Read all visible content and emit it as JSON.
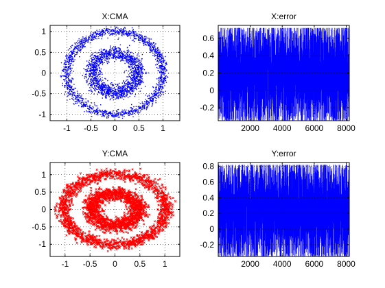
{
  "chart_data": [
    {
      "type": "scatter",
      "title": "X:CMA",
      "xlabel": "",
      "ylabel": "",
      "xlim": [
        -1.35,
        1.35
      ],
      "ylim": [
        -1.15,
        1.15
      ],
      "xticks": [
        -1,
        -0.5,
        0,
        0.5,
        1
      ],
      "xtick_labels": [
        "-1",
        "-0.5",
        "0",
        "0.5",
        "1"
      ],
      "yticks": [
        1,
        0.5,
        0,
        -0.5,
        -1
      ],
      "ytick_labels": [
        "1",
        "0.5",
        "0",
        "-0.5",
        "-1"
      ],
      "grid": true,
      "color": "#0000ff",
      "marker": "dot",
      "rings": [
        {
          "radius_min": 0.25,
          "radius_max": 0.7
        },
        {
          "radius_min": 0.85,
          "radius_max": 1.15
        }
      ]
    },
    {
      "type": "line",
      "title": "X:error",
      "xlabel": "",
      "ylabel": "",
      "xlim": [
        1,
        8192
      ],
      "ylim": [
        -0.35,
        0.75
      ],
      "xticks": [
        2000,
        4000,
        6000,
        8000
      ],
      "xtick_labels": [
        "2000",
        "4000",
        "6000",
        "8000"
      ],
      "yticks": [
        0.6,
        0.4,
        0.2,
        0,
        -0.2
      ],
      "ytick_labels": [
        "0.6",
        "0.4",
        "0.2",
        "0",
        "-0.2"
      ],
      "grid": true,
      "color": "#0000ff",
      "n_points": 8192,
      "value_range": [
        -0.35,
        0.72
      ]
    },
    {
      "type": "scatter",
      "title": "Y:CMA",
      "xlabel": "",
      "ylabel": "",
      "xlim": [
        -1.3,
        1.3
      ],
      "ylim": [
        -1.35,
        1.35
      ],
      "xticks": [
        -1,
        -0.5,
        0,
        0.5,
        1
      ],
      "xtick_labels": [
        "-1",
        "-0.5",
        "0",
        "0.5",
        "1"
      ],
      "yticks": [
        1,
        0.5,
        0,
        -0.5,
        -1
      ],
      "ytick_labels": [
        "1",
        "0.5",
        "0",
        "-0.5",
        "-1"
      ],
      "grid": true,
      "color": "#ff0000",
      "marker": "x",
      "rings": [
        {
          "radius_min": 0.22,
          "radius_max": 0.72
        },
        {
          "radius_min": 0.82,
          "radius_max": 1.22
        }
      ]
    },
    {
      "type": "line",
      "title": "Y:error",
      "xlabel": "",
      "ylabel": "",
      "xlim": [
        1,
        8192
      ],
      "ylim": [
        -0.35,
        0.85
      ],
      "xticks": [
        2000,
        4000,
        6000,
        8000
      ],
      "xtick_labels": [
        "2000",
        "4000",
        "6000",
        "8000"
      ],
      "yticks": [
        0.8,
        0.6,
        0.4,
        0.2,
        0,
        -0.2
      ],
      "ytick_labels": [
        "0.8",
        "0.6",
        "0.4",
        "0.2",
        "0",
        "-0.2"
      ],
      "grid": true,
      "color": "#0000ff",
      "n_points": 8192,
      "value_range": [
        -0.35,
        0.82
      ]
    }
  ]
}
